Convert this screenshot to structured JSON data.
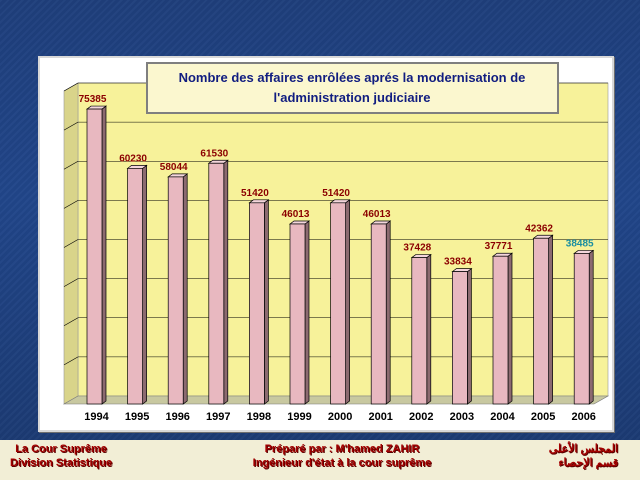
{
  "chart_data": {
    "type": "bar",
    "title": "Nombre des affaires enrôlées aprés la modernisation de l'administration judiciaire",
    "title_lines": [
      "Nombre des affaires enrôlées aprés la modernisation de",
      "l'administration judiciaire"
    ],
    "categories": [
      "1994",
      "1995",
      "1996",
      "1997",
      "1998",
      "1999",
      "2000",
      "2001",
      "2002",
      "2003",
      "2004",
      "2005",
      "2006"
    ],
    "values": [
      75385,
      60230,
      58044,
      61530,
      51420,
      46013,
      51420,
      46013,
      37428,
      33834,
      37771,
      42362,
      38485
    ],
    "value_labels": [
      "75385",
      "60230",
      "58044",
      "61530",
      "51420",
      "46013",
      "51420",
      "46013",
      "37428",
      "33834",
      "37771",
      "42362",
      "38485"
    ],
    "ylim": [
      0,
      80000
    ],
    "grid": true,
    "legend": "none",
    "xlabel": "",
    "ylabel": "",
    "colors": {
      "bar_front": "#e8b8c0",
      "bar_side": "#8c6a70",
      "bar_top": "#f4d6dc",
      "bar_outline": "#000000",
      "plot_back": "#f7f29a",
      "plot_floor": "#c8c8a0",
      "value_label": "#8b0000",
      "value_label_highlight": "#1a8ea0",
      "title_box": "#fbf7cf",
      "title_text": "#111d80"
    },
    "highlight_index": 12
  },
  "footer": {
    "left_line1": "La Cour Suprême",
    "left_line2": "Division Statistique",
    "center_line1": "Préparé par : M'hamed ZAHIR",
    "center_line2": "Ingénieur d'état à la cour suprême",
    "right_line1": "المجلس الأعلى",
    "right_line2": "قسم الإحصاء"
  }
}
